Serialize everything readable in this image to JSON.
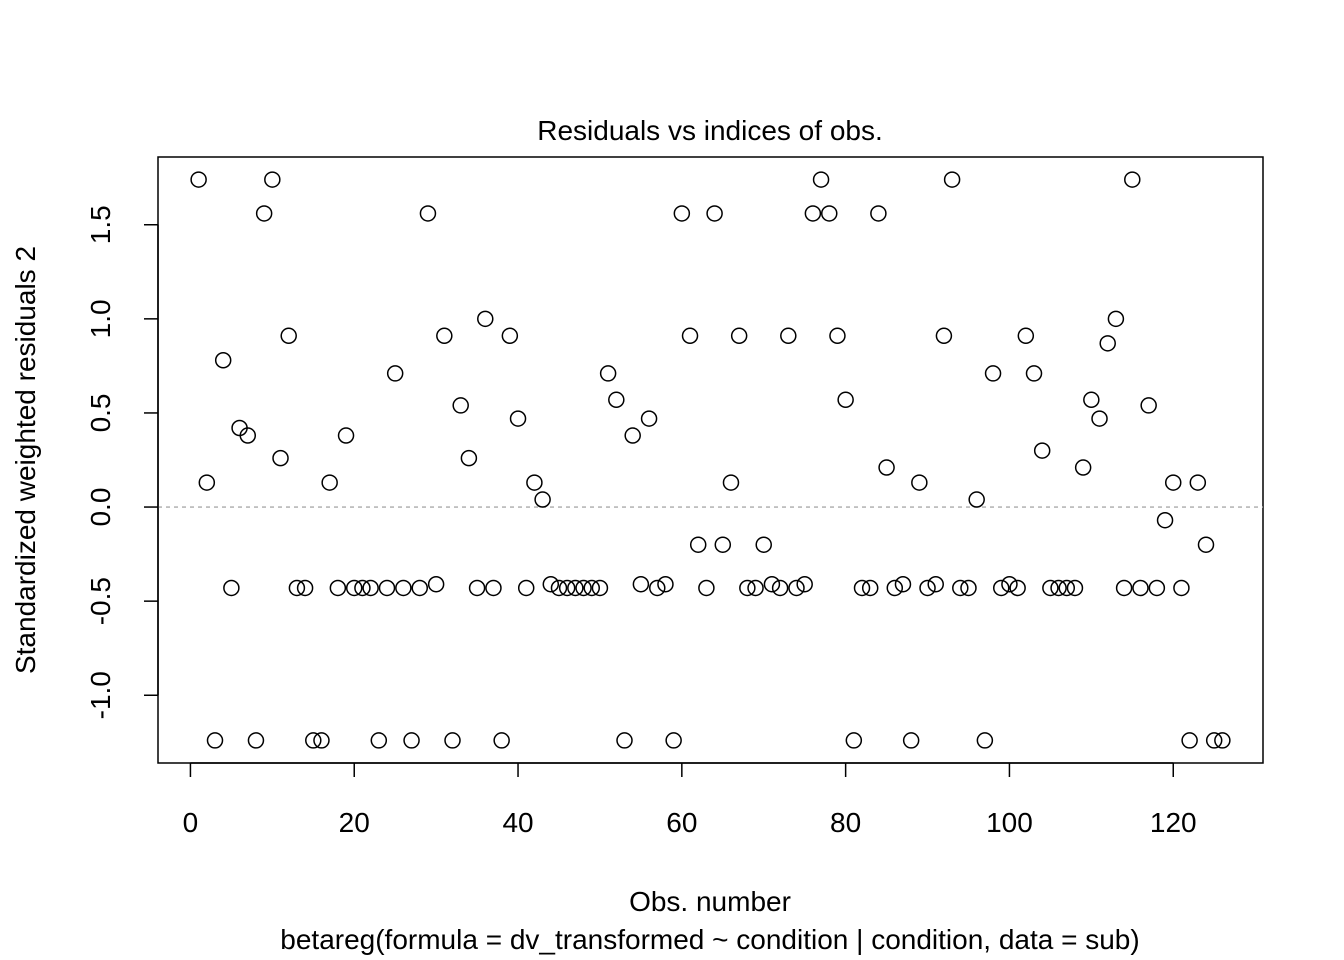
{
  "chart_data": {
    "type": "scatter",
    "title": "Residuals vs indices of obs.",
    "xlabel": "Obs. number",
    "subtitle": "betareg(formula = dv_transformed ~ condition | condition, data = sub)",
    "ylabel": "Standardized weighted residuals 2",
    "xlim": [
      -3.96,
      130.96
    ],
    "ylim": [
      -1.36,
      1.86
    ],
    "xticks": [
      "0",
      "20",
      "40",
      "60",
      "80",
      "100",
      "120"
    ],
    "xtick_values": [
      0,
      20,
      40,
      60,
      80,
      100,
      120
    ],
    "yticks": [
      "-1.0",
      "-0.5",
      "0.0",
      "0.5",
      "1.0",
      "1.5"
    ],
    "ytick_values": [
      -1.0,
      -0.5,
      0.0,
      0.5,
      1.0,
      1.5
    ],
    "reference_line": 0,
    "grid": false,
    "x": [
      1,
      2,
      3,
      4,
      5,
      6,
      7,
      8,
      9,
      10,
      11,
      12,
      13,
      14,
      15,
      16,
      17,
      18,
      19,
      20,
      21,
      22,
      23,
      24,
      25,
      26,
      27,
      28,
      29,
      30,
      31,
      32,
      33,
      34,
      35,
      36,
      37,
      38,
      39,
      40,
      41,
      42,
      43,
      44,
      45,
      46,
      47,
      48,
      49,
      50,
      51,
      52,
      53,
      54,
      55,
      56,
      57,
      58,
      59,
      60,
      61,
      62,
      63,
      64,
      65,
      66,
      67,
      68,
      69,
      70,
      71,
      72,
      73,
      74,
      75,
      76,
      77,
      78,
      79,
      80,
      81,
      82,
      83,
      84,
      85,
      86,
      87,
      88,
      89,
      90,
      91,
      92,
      93,
      94,
      95,
      96,
      97,
      98,
      99,
      100,
      101,
      102,
      103,
      104,
      105,
      106,
      107,
      108,
      109,
      110,
      111,
      112,
      113,
      114,
      115,
      116,
      117,
      118,
      119,
      120,
      121,
      122,
      123,
      124,
      125,
      126
    ],
    "y": [
      1.74,
      0.13,
      -1.24,
      0.78,
      -0.43,
      0.42,
      0.38,
      -1.24,
      1.56,
      1.74,
      0.26,
      0.91,
      -0.43,
      -0.43,
      -1.24,
      -1.24,
      0.13,
      -0.43,
      0.38,
      -0.43,
      -0.43,
      -0.43,
      -1.24,
      -0.43,
      0.71,
      -0.43,
      -1.24,
      -0.43,
      1.56,
      -0.41,
      0.91,
      -1.24,
      0.54,
      0.26,
      -0.43,
      1.0,
      -0.43,
      -1.24,
      0.91,
      0.47,
      -0.43,
      0.13,
      0.04,
      -0.41,
      -0.43,
      -0.43,
      -0.43,
      -0.43,
      -0.43,
      -0.43,
      0.71,
      0.57,
      -1.24,
      0.38,
      -0.41,
      0.47,
      -0.43,
      -0.41,
      -1.24,
      1.56,
      0.91,
      -0.2,
      -0.43,
      1.56,
      -0.2,
      0.13,
      0.91,
      -0.43,
      -0.43,
      -0.2,
      -0.41,
      -0.43,
      0.91,
      -0.43,
      -0.41,
      1.56,
      1.74,
      1.56,
      0.91,
      0.57,
      -1.24,
      -0.43,
      -0.43,
      1.56,
      0.21,
      -0.43,
      -0.41,
      -1.24,
      0.13,
      -0.43,
      -0.41,
      0.91,
      1.74,
      -0.43,
      -0.43,
      0.04,
      -1.24,
      0.71,
      -0.43,
      -0.41,
      -0.43,
      0.91,
      0.71,
      0.3,
      -0.43,
      -0.43,
      -0.43,
      -0.43,
      0.21,
      0.57,
      0.47,
      0.87,
      1.0,
      -0.43,
      1.74,
      -0.43,
      0.54,
      -0.43,
      -0.07,
      0.13,
      -0.43,
      -1.24,
      0.13,
      -0.2,
      -1.24,
      -1.24
    ]
  }
}
